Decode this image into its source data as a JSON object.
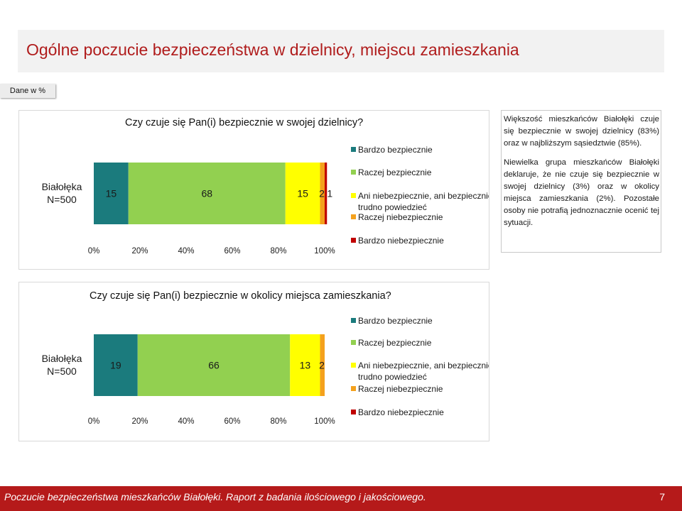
{
  "slide": {
    "title": "Ogólne poczucie bezpieczeństwa w dzielnicy, miejscu zamieszkania",
    "units_tag": "Dane w %"
  },
  "colors": {
    "title": "#b01c1c",
    "footer_bg": "#b51a1a",
    "series": [
      "#1b7b7d",
      "#92d050",
      "#ffff00",
      "#f4a11d",
      "#c00000"
    ]
  },
  "chart_data": [
    {
      "type": "bar",
      "orientation": "horizontal-stacked-100",
      "title": "Czy czuje się Pan(i) bezpiecznie w swojej dzielnicy?",
      "category_label_line1": "Białołęka",
      "category_label_line2": "N=500",
      "x_ticks": [
        "0%",
        "20%",
        "40%",
        "60%",
        "80%",
        "100%"
      ],
      "xlim": [
        0,
        100
      ],
      "legend_position": "right",
      "series": [
        {
          "name": "Bardzo bezpiecznie",
          "value": 15,
          "label": "15"
        },
        {
          "name": "Raczej bezpiecznie",
          "value": 68,
          "label": "68"
        },
        {
          "name": "Ani niebezpiecznie, ani bezpiecznie, trudno powiedzieć",
          "value": 15,
          "label": "15"
        },
        {
          "name": "Raczej niebezpiecznie",
          "value": 2,
          "label": "2"
        },
        {
          "name": "Bardzo niebezpiecznie",
          "value": 1,
          "label": "1"
        }
      ]
    },
    {
      "type": "bar",
      "orientation": "horizontal-stacked-100",
      "title": "Czy czuje się Pan(i) bezpiecznie w okolicy miejsca zamieszkania?",
      "category_label_line1": "Białołęka",
      "category_label_line2": "N=500",
      "x_ticks": [
        "0%",
        "20%",
        "40%",
        "60%",
        "80%",
        "100%"
      ],
      "xlim": [
        0,
        100
      ],
      "legend_position": "right",
      "series": [
        {
          "name": "Bardzo bezpiecznie",
          "value": 19,
          "label": "19"
        },
        {
          "name": "Raczej bezpiecznie",
          "value": 66,
          "label": "66"
        },
        {
          "name": "Ani niebezpiecznie, ani bezpiecznie, trudno powiedzieć",
          "value": 13,
          "label": "13"
        },
        {
          "name": "Raczej niebezpiecznie",
          "value": 2,
          "label": "2"
        },
        {
          "name": "Bardzo niebezpiecznie",
          "value": 0,
          "label": ""
        }
      ]
    }
  ],
  "note": {
    "paragraph1": "Większość mieszkańców Białołęki czuje się bezpiecznie w swojej dzielnicy (83%) oraz w najbliższym sąsiedztwie (85%).",
    "paragraph2": "Niewielka grupa mieszkańców Białołęki deklaruje, że nie czuje się bezpiecznie w swojej dzielnicy (3%) oraz w okolicy miejsca zamieszkania (2%). Pozostałe osoby nie potrafią jednoznacznie ocenić tej sytuacji."
  },
  "footer": {
    "text": "Poczucie bezpieczeństwa mieszkańców Białołęki. Raport z badania ilościowego i jakościowego.",
    "page_number": "7"
  }
}
